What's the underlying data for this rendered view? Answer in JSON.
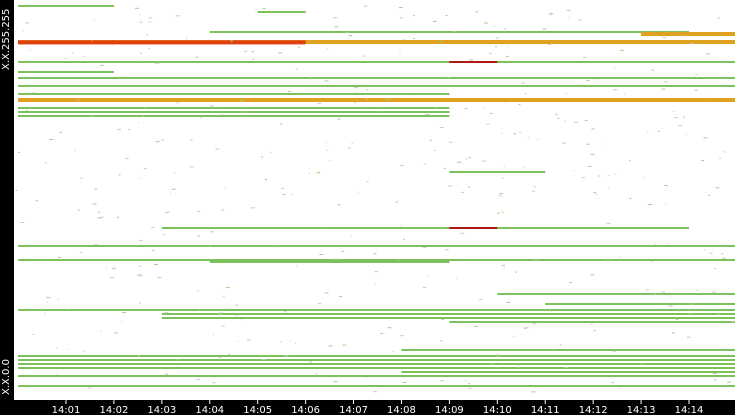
{
  "chart_data": {
    "type": "heatmap",
    "title": "",
    "xlabel": "",
    "ylabel": "",
    "y_axis_labels": {
      "top": "X.X.255.255",
      "bottom": "X.X.0.0"
    },
    "x_ticks": [
      "14:01",
      "14:02",
      "14:03",
      "14:04",
      "14:05",
      "14:06",
      "14:07",
      "14:08",
      "14:09",
      "14:10",
      "14:11",
      "14:12",
      "14:13",
      "14:14"
    ],
    "x_range": [
      "14:00",
      "14:15"
    ],
    "y_range": [
      0,
      1
    ],
    "colors": {
      "background": "#ffffff",
      "axis": "#000000",
      "low": "#7cc15a",
      "medium": "#e0a020",
      "high": "#e04010",
      "peak": "#b01818"
    },
    "bands": [
      {
        "y": 0.985,
        "start": "14:00",
        "end": "14:02",
        "level": "low"
      },
      {
        "y": 0.97,
        "start": "14:05",
        "end": "14:06",
        "level": "low"
      },
      {
        "y": 0.92,
        "start": "14:04",
        "end": "14:14",
        "level": "low"
      },
      {
        "y": 0.915,
        "start": "14:13",
        "end": "14:15",
        "level": "medium"
      },
      {
        "y": 0.895,
        "start": "14:00",
        "end": "14:15",
        "level": "medium"
      },
      {
        "y": 0.894,
        "start": "14:00",
        "end": "14:06",
        "level": "high"
      },
      {
        "y": 0.845,
        "start": "14:00",
        "end": "14:15",
        "level": "low"
      },
      {
        "y": 0.845,
        "start": "14:09",
        "end": "14:10",
        "level": "peak"
      },
      {
        "y": 0.82,
        "start": "14:00",
        "end": "14:02",
        "level": "low"
      },
      {
        "y": 0.805,
        "start": "14:00",
        "end": "14:15",
        "level": "low"
      },
      {
        "y": 0.785,
        "start": "14:00",
        "end": "14:15",
        "level": "low"
      },
      {
        "y": 0.765,
        "start": "14:00",
        "end": "14:09",
        "level": "low"
      },
      {
        "y": 0.75,
        "start": "14:00",
        "end": "14:15",
        "level": "medium"
      },
      {
        "y": 0.73,
        "start": "14:00",
        "end": "14:09",
        "level": "low"
      },
      {
        "y": 0.72,
        "start": "14:00",
        "end": "14:09",
        "level": "low"
      },
      {
        "y": 0.71,
        "start": "14:00",
        "end": "14:09",
        "level": "low"
      },
      {
        "y": 0.57,
        "start": "14:09",
        "end": "14:11",
        "level": "low"
      },
      {
        "y": 0.43,
        "start": "14:03",
        "end": "14:14",
        "level": "low"
      },
      {
        "y": 0.43,
        "start": "14:09",
        "end": "14:10",
        "level": "peak"
      },
      {
        "y": 0.385,
        "start": "14:00",
        "end": "14:15",
        "level": "low"
      },
      {
        "y": 0.35,
        "start": "14:00",
        "end": "14:15",
        "level": "low"
      },
      {
        "y": 0.345,
        "start": "14:04",
        "end": "14:09",
        "level": "low"
      },
      {
        "y": 0.265,
        "start": "14:10",
        "end": "14:15",
        "level": "low"
      },
      {
        "y": 0.24,
        "start": "14:11",
        "end": "14:15",
        "level": "low"
      },
      {
        "y": 0.225,
        "start": "14:00",
        "end": "14:15",
        "level": "low"
      },
      {
        "y": 0.215,
        "start": "14:03",
        "end": "14:15",
        "level": "low"
      },
      {
        "y": 0.205,
        "start": "14:03",
        "end": "14:15",
        "level": "low"
      },
      {
        "y": 0.195,
        "start": "14:09",
        "end": "14:15",
        "level": "low"
      },
      {
        "y": 0.125,
        "start": "14:08",
        "end": "14:15",
        "level": "low"
      },
      {
        "y": 0.11,
        "start": "14:00",
        "end": "14:15",
        "level": "low"
      },
      {
        "y": 0.1,
        "start": "14:00",
        "end": "14:15",
        "level": "low"
      },
      {
        "y": 0.09,
        "start": "14:00",
        "end": "14:15",
        "level": "low"
      },
      {
        "y": 0.08,
        "start": "14:00",
        "end": "14:15",
        "level": "low"
      },
      {
        "y": 0.07,
        "start": "14:08",
        "end": "14:15",
        "level": "low"
      },
      {
        "y": 0.06,
        "start": "14:00",
        "end": "14:15",
        "level": "low"
      },
      {
        "y": 0.035,
        "start": "14:00",
        "end": "14:15",
        "level": "low"
      }
    ],
    "grid": false,
    "legend": "none"
  }
}
